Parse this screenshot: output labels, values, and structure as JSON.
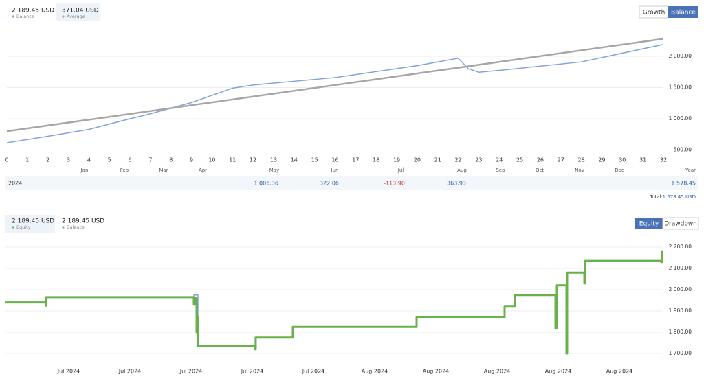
{
  "legend_top": [
    {
      "amount": "2 189.45 USD",
      "label": "Balance"
    },
    {
      "amount": "371.04 USD",
      "label": "Average"
    }
  ],
  "tabs_top": [
    "Growth",
    "Balance"
  ],
  "tabs_bottom": [
    "Equity",
    "Drawdown"
  ],
  "legend_bottom": [
    {
      "amount": "2 189.45 USD",
      "label": "Equity"
    },
    {
      "amount": "2 189.45 USD",
      "label": "Balance"
    }
  ],
  "chart_data": [
    {
      "type": "line",
      "xlim": [
        0,
        32
      ],
      "xticks": [
        0,
        1,
        2,
        3,
        4,
        5,
        6,
        7,
        8,
        9,
        10,
        11,
        12,
        13,
        14,
        15,
        16,
        17,
        18,
        19,
        20,
        21,
        22,
        23,
        24,
        25,
        26,
        27,
        28,
        29,
        30,
        31,
        32
      ],
      "ylim": [
        400,
        2500
      ],
      "yticks": [
        {
          "value": 500,
          "label": "500.00"
        },
        {
          "value": 1000,
          "label": "1 000.00"
        },
        {
          "value": 1500,
          "label": "1 500.00"
        },
        {
          "value": 2000,
          "label": "2 000.00"
        }
      ],
      "grid": true,
      "series": [
        {
          "name": "Balance",
          "color": "#7fa3dc",
          "x": [
            0,
            2,
            4,
            6,
            7,
            9,
            11,
            12,
            16,
            20,
            22,
            22.5,
            23,
            24,
            28,
            32
          ],
          "values": [
            615,
            720,
            830,
            1000,
            1080,
            1260,
            1490,
            1540,
            1660,
            1850,
            1970,
            1800,
            1745,
            1775,
            1910,
            2190
          ]
        },
        {
          "name": "Average",
          "color": "#a6a6a6",
          "x": [
            0,
            32
          ],
          "values": [
            800,
            2280
          ]
        }
      ]
    },
    {
      "type": "step",
      "xlim": [
        0,
        955
      ],
      "x_labels": [
        "Jul 2024",
        "Jul 2024",
        "Jul 2024",
        "Jul 2024",
        "Jul 2024",
        "Aug 2024",
        "Aug 2024",
        "Aug 2024",
        "Aug 2024",
        "Aug 2024"
      ],
      "ylim": [
        1650,
        2260
      ],
      "yticks": [
        {
          "value": 1700,
          "label": "1 700.00"
        },
        {
          "value": 1800,
          "label": "1 800.00"
        },
        {
          "value": 1900,
          "label": "1 900.00"
        },
        {
          "value": 2000,
          "label": "2 000.00"
        },
        {
          "value": 2100,
          "label": "2 100.00"
        },
        {
          "value": 2200,
          "label": "2 200.00"
        }
      ],
      "grid": true,
      "series": [
        {
          "name": "Balance",
          "color": "#6d95d6",
          "x": [
            0,
            59,
            59,
            272,
            274,
            280,
            280,
            363,
            363,
            417,
            418,
            597,
            598,
            725,
            726,
            740,
            741,
            800,
            802,
            814,
            817,
            840,
            843,
            954
          ],
          "values": [
            1940,
            1940,
            1965,
            1965,
            1975,
            1975,
            1735,
            1735,
            1775,
            1775,
            1825,
            1825,
            1870,
            1870,
            1920,
            1920,
            1975,
            1975,
            2020,
            2020,
            2080,
            2080,
            2135,
            2135
          ]
        },
        {
          "name": "Equity",
          "color": "#6ab04c",
          "x": [
            0,
            59,
            59,
            59,
            272,
            274,
            276,
            278,
            280,
            280,
            363,
            363,
            364,
            364,
            417,
            418,
            597,
            598,
            725,
            726,
            740,
            741,
            800,
            800,
            802,
            814,
            816,
            817,
            840,
            842,
            843,
            954,
            954,
            955
          ],
          "values": [
            1940,
            1940,
            1925,
            1965,
            1965,
            1930,
            1960,
            1800,
            1870,
            1735,
            1735,
            1720,
            1720,
            1775,
            1775,
            1825,
            1825,
            1870,
            1870,
            1920,
            1920,
            1975,
            1975,
            1820,
            2020,
            2020,
            1700,
            2080,
            2080,
            2030,
            2135,
            2135,
            2130,
            2185
          ]
        }
      ]
    }
  ],
  "summary": {
    "months": [
      "Jan",
      "Feb",
      "Mar",
      "Apr",
      "May",
      "Jun",
      "Jul",
      "Aug",
      "Sep",
      "Oct",
      "Nov",
      "Dec"
    ],
    "year_header": "Year",
    "row_label": "2024",
    "values": [
      null,
      null,
      null,
      null,
      "1 006.36",
      "322.06",
      "-113.90",
      "363.93",
      null,
      null,
      null,
      null
    ],
    "year_total": "1 578.45",
    "total_label": "Total:",
    "total_value": "1 578.45 USD"
  }
}
